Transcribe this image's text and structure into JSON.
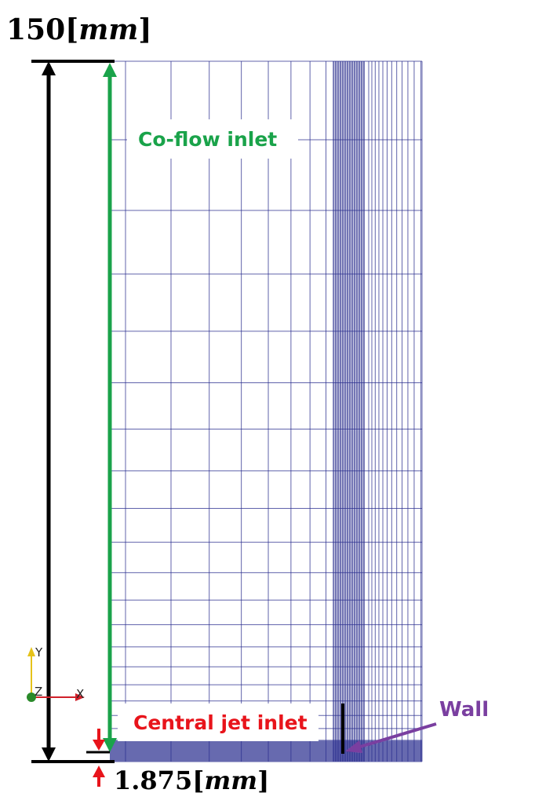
{
  "dimension_top": {
    "value": "150",
    "unit": "mm"
  },
  "dimension_bottom": {
    "value": "1.875",
    "unit": "mm"
  },
  "labels": {
    "co_flow_inlet": "Co-flow inlet",
    "central_jet_inlet": "Central jet inlet",
    "wall": "Wall"
  },
  "axes_triad": {
    "y": "Y",
    "z": "Z",
    "x": "X"
  },
  "colors": {
    "mesh_line": "#2b2f8f",
    "co_flow_arrow": "#1aa34a",
    "jet_arrow": "#e8141b",
    "wall_arrow": "#7a3fa0",
    "dimension_line": "#000000",
    "triad_y": "#e5c21a",
    "triad_x": "#d0202a",
    "triad_origin": "#2a8a2a"
  }
}
